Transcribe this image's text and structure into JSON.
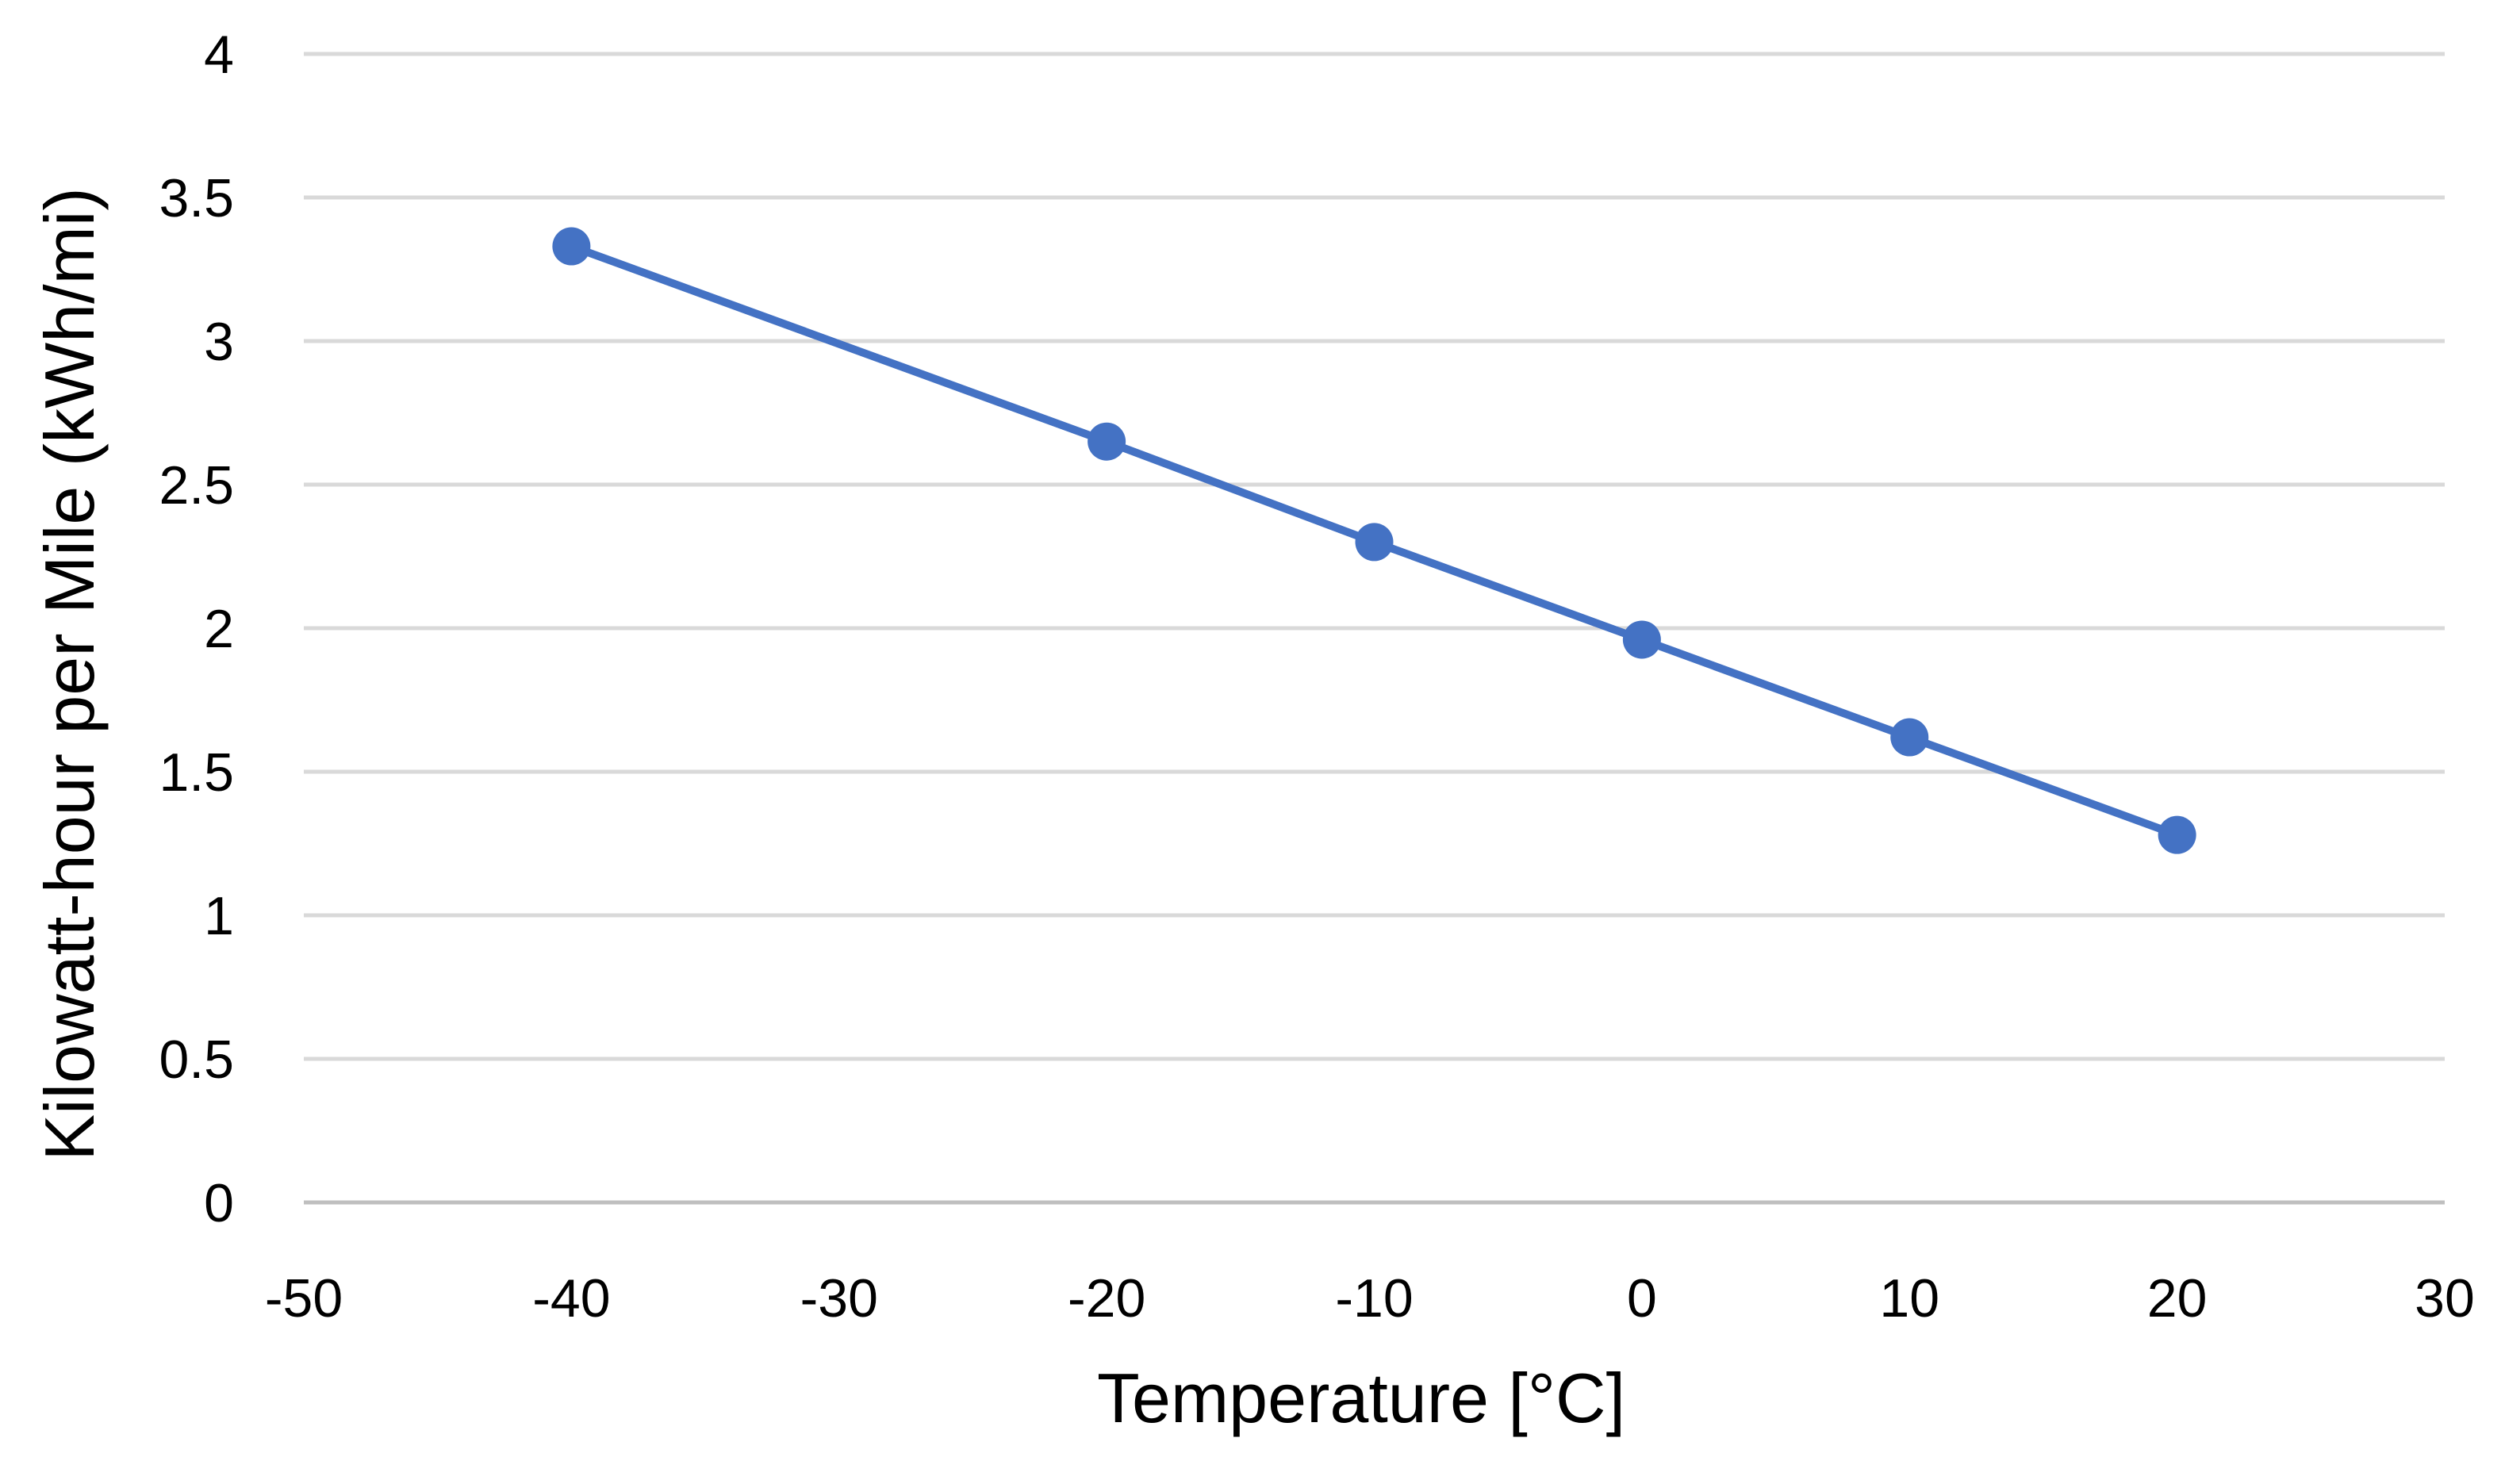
{
  "chart_data": {
    "type": "line",
    "title": "",
    "xlabel": "Temperature [°C]",
    "ylabel": "Kilowatt-hour  per Mile (kWh/mi)",
    "xlim": [
      -50,
      30
    ],
    "ylim": [
      0,
      4
    ],
    "xticks": [
      -50,
      -40,
      -30,
      -20,
      -10,
      0,
      10,
      20,
      30
    ],
    "yticks": [
      0,
      0.5,
      1,
      1.5,
      2,
      2.5,
      3,
      3.5,
      4
    ],
    "grid": true,
    "legend": "none",
    "series": [
      {
        "name": "kWh/mi",
        "color": "#4472c4",
        "x": [
          -40,
          -20,
          -10,
          0,
          10,
          20
        ],
        "y": [
          3.33,
          2.65,
          2.3,
          1.96,
          1.62,
          1.28
        ]
      }
    ]
  }
}
